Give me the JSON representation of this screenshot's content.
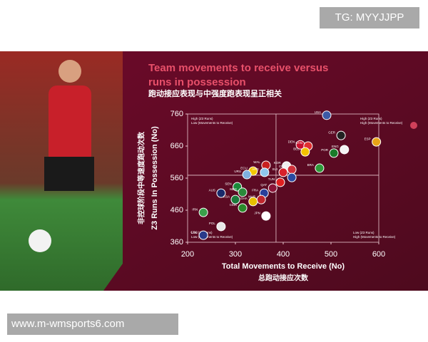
{
  "watermark_top": "TG: MYYJJPP",
  "watermark_bottom": "www.m-wmsports6.com",
  "chart_data": {
    "type": "scatter",
    "title_lines": [
      "Team movements to receive versus",
      "runs in possession"
    ],
    "subtitle": "跑动接应表现与中强度跑表现呈正相关",
    "x_label": "Total Movements to Receive (No)",
    "x_label_cn": "总跑动接应次数",
    "y_label": "Z3 Runs In Possession (No)",
    "y_label_cn": "非控球阶段中等速度跑动次数",
    "xlim": [
      200,
      600
    ],
    "xticks": [
      200,
      300,
      400,
      500,
      600
    ],
    "ylim": [
      360,
      760
    ],
    "yticks": [
      360,
      460,
      560,
      660,
      760
    ],
    "reference_x": 385,
    "reference_y": 569,
    "annotations": [
      {
        "corner": "top-left",
        "lines": [
          "High (Z3 Runs)",
          "Low (Movements to Receive)"
        ]
      },
      {
        "corner": "top-right",
        "lines": [
          "High (Z3 Runs)",
          "High (Movements to Receive)"
        ]
      },
      {
        "corner": "bottom-left",
        "lines": [
          "Low (Z3 Runs)",
          "Low (Movements to Receive)"
        ]
      },
      {
        "corner": "bottom-right",
        "lines": [
          "Low (Z3 Runs)",
          "High (Movements to Receive)"
        ]
      }
    ],
    "points": [
      {
        "label": "USA",
        "x": 491,
        "y": 756,
        "color": "#3c5aa6"
      },
      {
        "label": "GER",
        "x": 521,
        "y": 693,
        "color": "#222222"
      },
      {
        "label": "ESP",
        "x": 595,
        "y": 673,
        "color": "#e8a317"
      },
      {
        "label": "DEN",
        "x": 436,
        "y": 664,
        "color": "#c8102e"
      },
      {
        "label": "CAN",
        "x": 452,
        "y": 660,
        "color": "#e03030"
      },
      {
        "label": "BEL",
        "x": 446,
        "y": 642,
        "color": "#f2c200"
      },
      {
        "label": "ENG",
        "x": 528,
        "y": 649,
        "color": "#f4f4f4"
      },
      {
        "label": "POR",
        "x": 506,
        "y": 638,
        "color": "#1a7a2a"
      },
      {
        "label": "KOR",
        "x": 407,
        "y": 598,
        "color": "#eeeeee"
      },
      {
        "label": "CRO",
        "x": 418,
        "y": 587,
        "color": "#d0303a"
      },
      {
        "label": "BRA",
        "x": 476,
        "y": 591,
        "color": "#2e9a3a"
      },
      {
        "label": "NED",
        "x": 418,
        "y": 562,
        "color": "#2a4aa0"
      },
      {
        "label": "SUI",
        "x": 400,
        "y": 578,
        "color": "#d8202a"
      },
      {
        "label": "WAL",
        "x": 364,
        "y": 600,
        "color": "#c82020"
      },
      {
        "label": "ECU",
        "x": 337,
        "y": 582,
        "color": "#f2c800"
      },
      {
        "label": "URU",
        "x": 324,
        "y": 571,
        "color": "#7fb0e0"
      },
      {
        "label": "ARG",
        "x": 361,
        "y": 578,
        "color": "#8ec8ee"
      },
      {
        "label": "TUN",
        "x": 394,
        "y": 547,
        "color": "#e02020"
      },
      {
        "label": "QAT",
        "x": 378,
        "y": 529,
        "color": "#8a1538"
      },
      {
        "label": "FRA",
        "x": 360,
        "y": 513,
        "color": "#2a3f9a"
      },
      {
        "label": "MAR",
        "x": 354,
        "y": 493,
        "color": "#c0272d"
      },
      {
        "label": "SEN",
        "x": 304,
        "y": 533,
        "color": "#1a8a3a"
      },
      {
        "label": "AUS",
        "x": 270,
        "y": 513,
        "color": "#1a2a6a"
      },
      {
        "label": "MEX",
        "x": 315,
        "y": 516,
        "color": "#2a8a3a"
      },
      {
        "label": "KSA",
        "x": 300,
        "y": 493,
        "color": "#1a7a3a"
      },
      {
        "label": "GHA",
        "x": 337,
        "y": 487,
        "color": "#e8c000"
      },
      {
        "label": "CMR",
        "x": 315,
        "y": 467,
        "color": "#2a8a2a"
      },
      {
        "label": "IRN",
        "x": 233,
        "y": 453,
        "color": "#3aa04a"
      },
      {
        "label": "JPN",
        "x": 364,
        "y": 442,
        "color": "#ffffff"
      },
      {
        "label": "POL",
        "x": 270,
        "y": 409,
        "color": "#e8e8e8"
      },
      {
        "label": "CRC",
        "x": 233,
        "y": 382,
        "color": "#2a3a8a"
      }
    ]
  }
}
